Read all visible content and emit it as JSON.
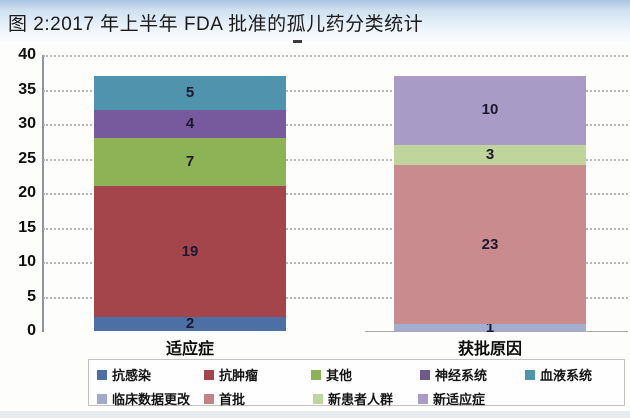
{
  "title": "图 2:2017 年上半年 FDA 批准的孤儿药分类统计",
  "chart_data": {
    "type": "bar",
    "stacked": true,
    "title": "图 2:2017 年上半年 FDA 批准的孤儿药分类统计",
    "xlabel": "",
    "ylabel": "",
    "ylim": [
      0,
      40
    ],
    "ytick_step": 5,
    "grid": "dotted horizontal",
    "legend_position": "bottom",
    "categories": [
      "适应症",
      "获批原因"
    ],
    "stacks": [
      {
        "category": "适应症",
        "total": 37,
        "segments": [
          {
            "label": "抗感染",
            "value": 2,
            "color": "#4c6fa6"
          },
          {
            "label": "抗肿瘤",
            "value": 19,
            "color": "#a3454a"
          },
          {
            "label": "其他",
            "value": 7,
            "color": "#8db356"
          },
          {
            "label": "神经系统",
            "value": 4,
            "color": "#77599d"
          },
          {
            "label": "血液系统",
            "value": 5,
            "color": "#4f93ad"
          }
        ]
      },
      {
        "category": "获批原因",
        "total": 37,
        "segments": [
          {
            "label": "临床数据更改",
            "value": 1,
            "color": "#a3adcf"
          },
          {
            "label": "首批",
            "value": 23,
            "color": "#c98b8e"
          },
          {
            "label": "新患者人群",
            "value": 3,
            "color": "#c0d59c"
          },
          {
            "label": "新适应症",
            "value": 10,
            "color": "#a89bc5"
          }
        ]
      }
    ],
    "legend_rows": [
      [
        {
          "label": "抗感染",
          "color": "#4c6fa6"
        },
        {
          "label": "抗肿瘤",
          "color": "#a3454a"
        },
        {
          "label": "其他",
          "color": "#8db356"
        },
        {
          "label": "神经系统",
          "color": "#6f5a8c"
        },
        {
          "label": "血液系统",
          "color": "#4f93ad"
        }
      ],
      [
        {
          "label": "临床数据更改",
          "color": "#9fabc9"
        },
        {
          "label": "首批",
          "color": "#c08487"
        },
        {
          "label": "新患者人群",
          "color": "#c0d59c"
        },
        {
          "label": "新适应症",
          "color": "#a89bc5"
        }
      ]
    ]
  }
}
